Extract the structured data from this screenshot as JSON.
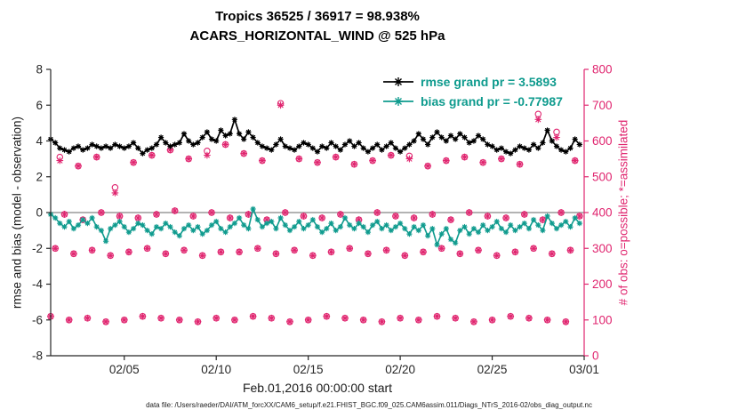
{
  "header": {
    "title_line1": "Tropics 36525 / 36917 = 98.938%",
    "title_line2": "ACARS_HORIZONTAL_WIND @ 525 hPa"
  },
  "footer": {
    "text": "data file: /Users/raeder/DAI/ATM_forcXX/CAM6_setup/f.e21.FHIST_BGC.f09_025.CAM6assim.011/Diags_NTrS_2016-02/obs_diag_output.nc"
  },
  "colors": {
    "rmse": "#000000",
    "bias": "#0f9b8e",
    "obs": "#e0256f",
    "zero_line": "#b3b3b3",
    "axis": "#262626"
  },
  "chart_data": {
    "type": "line",
    "title": "Tropics 36525 / 36917 = 98.938% | ACARS_HORIZONTAL_WIND @ 525 hPa",
    "xlabel": "Feb.01,2016 00:00:00 start",
    "ylabel_left": "rmse and bias (model - observation)",
    "ylabel_right": "# of obs: o=possible; *=assimilated",
    "grid": false,
    "xlim_days": [
      0,
      29
    ],
    "x_start_day": 0,
    "x_step_days": 0.25,
    "ylim_left": [
      -8,
      8
    ],
    "ylim_right": [
      0,
      800
    ],
    "yticks_left": [
      -8,
      -6,
      -4,
      -2,
      0,
      2,
      4,
      6,
      8
    ],
    "yticks_right": [
      0,
      100,
      200,
      300,
      400,
      500,
      600,
      700,
      800
    ],
    "xticks": [
      {
        "day": 4,
        "label": "02/05"
      },
      {
        "day": 9,
        "label": "02/10"
      },
      {
        "day": 14,
        "label": "02/15"
      },
      {
        "day": 19,
        "label": "02/20"
      },
      {
        "day": 24,
        "label": "02/25"
      },
      {
        "day": 29,
        "label": "03/01"
      }
    ],
    "legend": {
      "position": "top-right-inside",
      "entries": [
        {
          "label": "rmse grand pr = 3.5893",
          "color_key": "rmse"
        },
        {
          "label": "bias grand pr = -0.77987",
          "color_key": "bias"
        }
      ]
    },
    "rmse": {
      "name": "rmse",
      "axis": "left",
      "values": [
        4.1,
        3.9,
        3.6,
        3.5,
        3.4,
        3.6,
        3.7,
        3.5,
        3.6,
        3.8,
        3.7,
        3.6,
        3.7,
        3.6,
        3.8,
        3.7,
        3.6,
        3.7,
        3.9,
        3.6,
        3.3,
        3.5,
        3.6,
        3.8,
        4.2,
        3.9,
        3.7,
        3.8,
        3.9,
        4.4,
        4.0,
        3.8,
        3.9,
        4.2,
        4.5,
        4.1,
        4.0,
        4.6,
        4.3,
        4.4,
        5.2,
        4.4,
        4.1,
        4.5,
        4.2,
        3.9,
        3.7,
        3.6,
        3.5,
        3.8,
        4.1,
        3.7,
        3.6,
        3.5,
        3.7,
        3.9,
        3.8,
        3.6,
        3.4,
        3.7,
        3.6,
        3.9,
        3.7,
        3.5,
        3.8,
        4.0,
        3.7,
        3.9,
        3.6,
        3.4,
        3.6,
        3.8,
        3.5,
        3.7,
        3.9,
        3.6,
        3.4,
        3.6,
        3.8,
        4.0,
        4.4,
        4.1,
        3.8,
        4.2,
        4.5,
        4.2,
        4.0,
        4.3,
        4.1,
        4.4,
        4.2,
        3.9,
        4.0,
        4.3,
        4.1,
        3.8,
        3.7,
        3.5,
        3.6,
        3.4,
        3.3,
        3.5,
        3.7,
        3.6,
        3.5,
        3.8,
        3.6,
        3.9,
        4.6,
        4.0,
        3.7,
        3.5,
        3.4,
        3.6,
        4.1,
        3.8
      ]
    },
    "bias": {
      "name": "bias",
      "axis": "left",
      "values": [
        -0.1,
        -0.3,
        -0.6,
        -0.8,
        -0.5,
        -0.9,
        -0.7,
        -0.4,
        -0.6,
        -0.3,
        -0.8,
        -1.0,
        -1.6,
        -0.9,
        -0.7,
        -0.5,
        -0.8,
        -1.1,
        -0.9,
        -0.6,
        -0.7,
        -1.0,
        -1.2,
        -0.8,
        -0.9,
        -0.6,
        -0.8,
        -1.1,
        -1.3,
        -0.9,
        -0.7,
        -1.0,
        -0.8,
        -1.2,
        -1.0,
        -0.7,
        -0.5,
        -0.9,
        -1.1,
        -0.8,
        -0.6,
        -0.3,
        -0.7,
        -0.9,
        0.2,
        -0.4,
        -0.8,
        -0.6,
        -0.5,
        -0.9,
        -0.3,
        -0.7,
        -1.0,
        -0.8,
        -0.5,
        -0.9,
        -0.7,
        -0.4,
        -0.8,
        -1.1,
        -0.9,
        -0.6,
        -1.0,
        -0.8,
        -0.3,
        -0.7,
        -0.9,
        -0.6,
        -0.8,
        -1.1,
        -0.7,
        -0.5,
        -0.9,
        -0.7,
        -1.0,
        -0.8,
        -0.6,
        -0.9,
        -1.2,
        -0.8,
        -1.0,
        -0.7,
        -1.3,
        -0.9,
        -1.8,
        -1.2,
        -0.9,
        -1.5,
        -1.7,
        -1.0,
        -0.8,
        -1.2,
        -0.9,
        -1.1,
        -0.7,
        -1.0,
        -0.8,
        -0.5,
        -0.9,
        -1.1,
        -0.7,
        -1.0,
        -0.8,
        -0.6,
        -0.9,
        -0.4,
        -0.7,
        -1.0,
        -0.2,
        -0.6,
        -0.9,
        -0.7,
        -0.5,
        -0.8,
        -0.3,
        -0.6
      ]
    },
    "obs_possible": {
      "name": "# of obs possible",
      "axis": "right",
      "marker": "o",
      "values": [
        110,
        300,
        555,
        395,
        100,
        285,
        530,
        380,
        105,
        295,
        555,
        400,
        95,
        280,
        470,
        390,
        100,
        290,
        540,
        385,
        110,
        300,
        560,
        395,
        105,
        285,
        575,
        405,
        100,
        295,
        550,
        390,
        95,
        280,
        572,
        400,
        105,
        290,
        590,
        385,
        100,
        290,
        565,
        395,
        110,
        300,
        545,
        380,
        105,
        285,
        705,
        400,
        95,
        295,
        550,
        390,
        100,
        280,
        540,
        385,
        110,
        290,
        555,
        395,
        105,
        300,
        535,
        380,
        100,
        285,
        545,
        400,
        95,
        295,
        560,
        390,
        105,
        280,
        558,
        385,
        100,
        290,
        530,
        395,
        110,
        300,
        545,
        380,
        105,
        285,
        555,
        400,
        95,
        295,
        540,
        390,
        100,
        280,
        550,
        385,
        110,
        290,
        535,
        395,
        105,
        300,
        675,
        380,
        100,
        285,
        625,
        400,
        95,
        295,
        545,
        390
      ]
    },
    "obs_assimilated": {
      "name": "# of obs assimilated",
      "axis": "right",
      "marker": "*",
      "values": [
        110,
        300,
        545,
        395,
        100,
        285,
        530,
        380,
        105,
        295,
        555,
        400,
        95,
        280,
        455,
        390,
        100,
        290,
        540,
        385,
        110,
        300,
        560,
        395,
        105,
        285,
        575,
        405,
        100,
        295,
        550,
        390,
        95,
        280,
        560,
        400,
        105,
        290,
        590,
        385,
        100,
        290,
        565,
        395,
        110,
        300,
        545,
        380,
        105,
        285,
        700,
        400,
        95,
        295,
        550,
        390,
        100,
        280,
        540,
        385,
        110,
        290,
        555,
        395,
        105,
        300,
        535,
        380,
        100,
        285,
        545,
        400,
        95,
        295,
        560,
        390,
        105,
        280,
        550,
        385,
        100,
        290,
        530,
        395,
        110,
        300,
        545,
        380,
        105,
        285,
        555,
        400,
        95,
        295,
        540,
        390,
        100,
        280,
        550,
        385,
        110,
        290,
        535,
        395,
        105,
        300,
        660,
        380,
        100,
        285,
        610,
        400,
        95,
        295,
        545,
        390
      ]
    }
  }
}
